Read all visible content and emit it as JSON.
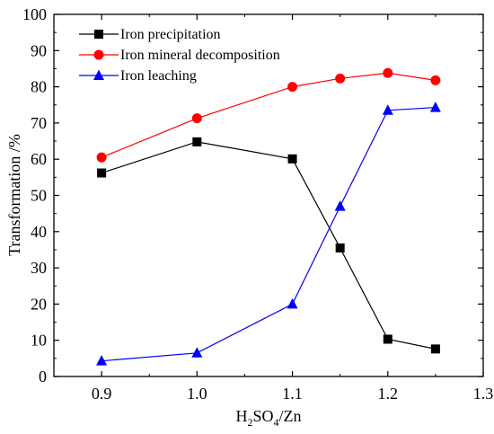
{
  "chart_data": {
    "type": "line",
    "title": "",
    "xlabel": {
      "base": "H",
      "sub1": "2",
      "mid": "SO",
      "sub2": "4",
      "tail": "/Zn"
    },
    "ylabel": "Transformation /%",
    "xlim": [
      0.85,
      1.3
    ],
    "ylim": [
      0,
      100
    ],
    "xticks": [
      "0.9",
      "1.0",
      "1.1",
      "1.2",
      "1.3"
    ],
    "yticks": [
      "0",
      "10",
      "20",
      "30",
      "40",
      "50",
      "60",
      "70",
      "80",
      "90",
      "100"
    ],
    "grid": false,
    "legend_position": "top-left",
    "series": [
      {
        "name": "Iron precipitation",
        "color": "#000000",
        "marker": "square",
        "x": [
          0.9,
          1.0,
          1.1,
          1.15,
          1.2,
          1.25
        ],
        "y": [
          56.2,
          64.8,
          60.1,
          35.5,
          10.3,
          7.6
        ]
      },
      {
        "name": "Iron mineral decomposition",
        "color": "#ff0000",
        "marker": "circle",
        "x": [
          0.9,
          1.0,
          1.1,
          1.15,
          1.2,
          1.25
        ],
        "y": [
          60.5,
          71.3,
          80.0,
          82.3,
          83.8,
          81.8
        ]
      },
      {
        "name": "Iron leaching",
        "color": "#0000ff",
        "marker": "triangle",
        "x": [
          0.9,
          1.0,
          1.1,
          1.15,
          1.2,
          1.25
        ],
        "y": [
          4.3,
          6.5,
          20.0,
          47.0,
          73.5,
          74.3
        ]
      }
    ]
  }
}
